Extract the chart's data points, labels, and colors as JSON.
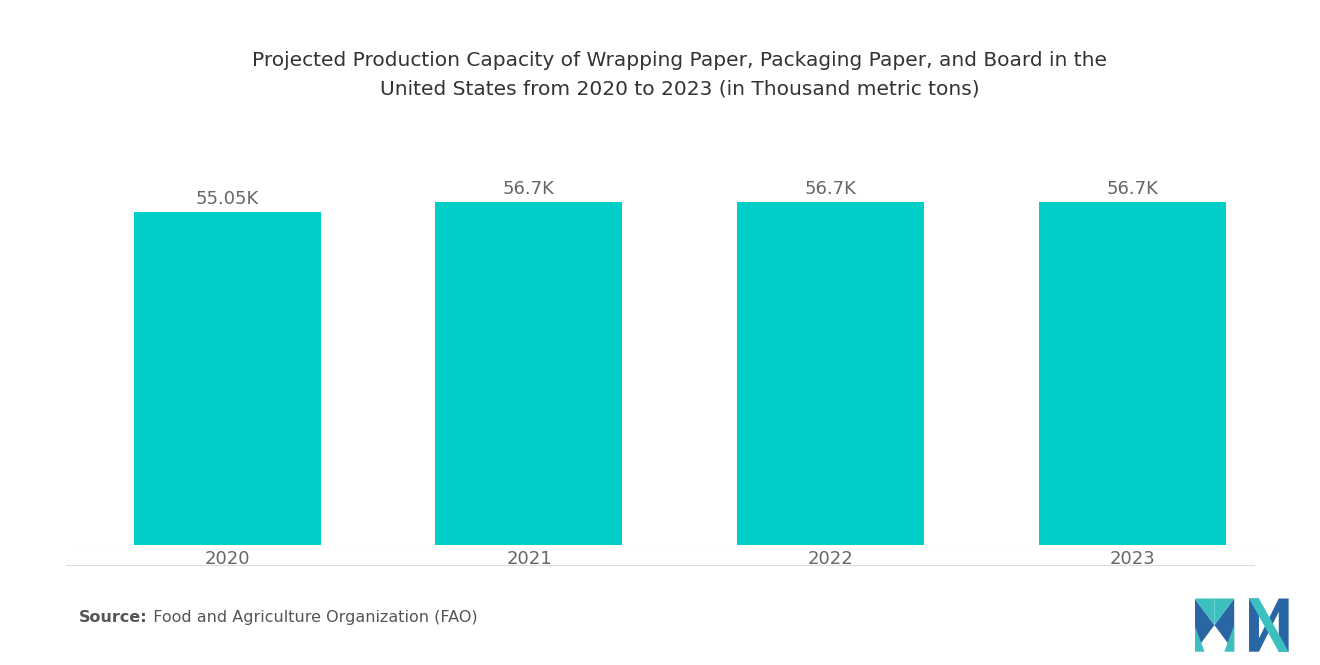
{
  "title_line1": "Projected Production Capacity of Wrapping Paper, Packaging Paper, and Board in the",
  "title_line2": "United States from 2020 to 2023 (in Thousand metric tons)",
  "categories": [
    "2020",
    "2021",
    "2022",
    "2023"
  ],
  "values": [
    55.05,
    56.7,
    56.7,
    56.7
  ],
  "labels": [
    "55.05K",
    "56.7K",
    "56.7K",
    "56.7K"
  ],
  "bar_color": "#00CEC9",
  "background_color": "#ffffff",
  "source_bold": "Source:",
  "source_normal": "  Food and Agriculture Organization (FAO)",
  "ylim": [
    0,
    68
  ],
  "title_fontsize": 14.5,
  "label_fontsize": 13,
  "tick_fontsize": 13,
  "source_fontsize": 11.5,
  "bar_width": 0.62,
  "logo_color_dark": "#2966A3",
  "logo_color_teal": "#3BBFBF"
}
